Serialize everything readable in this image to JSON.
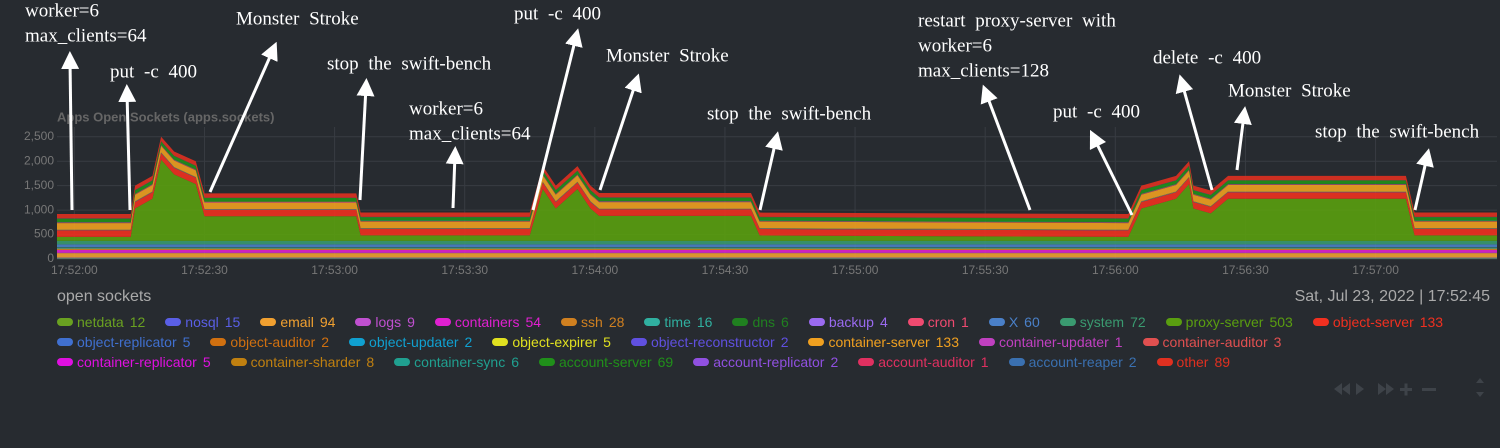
{
  "chart_data": {
    "type": "stacked-area",
    "title": "Apps Open Sockets (apps.sockets)",
    "subtitle": "open sockets",
    "timestamp": "Sat, Jul 23, 2022 | 17:52:45",
    "x": [
      "17:51:56",
      "17:52:13",
      "17:52:14",
      "17:52:18",
      "17:52:20",
      "17:52:23",
      "17:52:28",
      "17:52:30",
      "17:53:05",
      "17:53:06",
      "17:53:45",
      "17:53:48",
      "17:53:51",
      "17:53:56",
      "17:53:59",
      "17:54:01",
      "17:54:36",
      "17:54:38",
      "17:56:03",
      "17:56:06",
      "17:56:14",
      "17:56:17",
      "17:56:18",
      "17:56:22",
      "17:56:26",
      "17:57:07",
      "17:57:09",
      "17:57:28"
    ],
    "xlim": [
      "17:51:56",
      "17:57:28"
    ],
    "xticks": [
      "17:52:00",
      "17:52:30",
      "17:53:00",
      "17:53:30",
      "17:54:00",
      "17:54:30",
      "17:55:00",
      "17:55:30",
      "17:56:00",
      "17:56:30",
      "17:57:00"
    ],
    "ylim": [
      0,
      2700
    ],
    "yticks": [
      0,
      500,
      {
        "value": 1000,
        "label": "1,000"
      },
      {
        "value": 1500,
        "label": "1,500"
      },
      {
        "value": 2000,
        "label": "2,000"
      },
      {
        "value": 2500,
        "label": "2,500"
      }
    ],
    "grid": true,
    "series": [
      {
        "name": "netdata",
        "color": "#6aa121",
        "current": 12,
        "values": [
          12,
          12,
          12,
          12,
          12,
          12,
          12,
          12,
          12,
          12,
          12,
          12,
          12,
          12,
          12,
          12,
          12,
          12,
          12,
          12,
          12,
          12,
          12,
          12,
          12,
          12,
          12,
          12
        ]
      },
      {
        "name": "nosql",
        "color": "#5a5fe6",
        "current": 15,
        "values": [
          15,
          15,
          15,
          15,
          15,
          15,
          15,
          15,
          15,
          15,
          15,
          15,
          15,
          15,
          15,
          15,
          15,
          15,
          15,
          15,
          15,
          15,
          15,
          15,
          15,
          15,
          15,
          15
        ]
      },
      {
        "name": "email",
        "color": "#f0a030",
        "current": 94,
        "values": [
          94,
          94,
          94,
          94,
          94,
          94,
          94,
          94,
          94,
          94,
          94,
          94,
          94,
          94,
          94,
          94,
          94,
          94,
          94,
          94,
          94,
          94,
          94,
          94,
          94,
          94,
          94,
          94
        ]
      },
      {
        "name": "logs",
        "color": "#c050d0",
        "current": 9,
        "values": [
          9,
          9,
          9,
          9,
          9,
          9,
          9,
          9,
          9,
          9,
          9,
          9,
          9,
          9,
          9,
          9,
          9,
          9,
          9,
          9,
          9,
          9,
          9,
          9,
          9,
          9,
          9,
          9
        ]
      },
      {
        "name": "containers",
        "color": "#e020d0",
        "current": 54,
        "values": [
          54,
          54,
          54,
          54,
          54,
          54,
          54,
          54,
          54,
          54,
          54,
          54,
          54,
          54,
          54,
          54,
          54,
          54,
          54,
          54,
          54,
          54,
          54,
          54,
          54,
          54,
          54,
          54
        ]
      },
      {
        "name": "ssh",
        "color": "#d08020",
        "current": 28,
        "values": [
          28,
          28,
          28,
          28,
          28,
          28,
          28,
          28,
          28,
          28,
          28,
          28,
          28,
          28,
          28,
          28,
          28,
          28,
          28,
          28,
          28,
          28,
          28,
          28,
          28,
          28,
          28,
          28
        ]
      },
      {
        "name": "time",
        "color": "#30b0a0",
        "current": 16,
        "values": [
          16,
          16,
          16,
          16,
          16,
          16,
          16,
          16,
          16,
          16,
          16,
          16,
          16,
          16,
          16,
          16,
          16,
          16,
          16,
          16,
          16,
          16,
          16,
          16,
          16,
          16,
          16,
          16
        ]
      },
      {
        "name": "dns",
        "color": "#208020",
        "current": 6,
        "values": [
          6,
          6,
          6,
          6,
          6,
          6,
          6,
          6,
          6,
          6,
          6,
          6,
          6,
          6,
          6,
          6,
          6,
          6,
          6,
          6,
          6,
          6,
          6,
          6,
          6,
          6,
          6,
          6
        ]
      },
      {
        "name": "backup",
        "color": "#9a6af0",
        "current": 4,
        "values": [
          4,
          4,
          4,
          4,
          4,
          4,
          4,
          4,
          4,
          4,
          4,
          4,
          4,
          4,
          4,
          4,
          4,
          4,
          4,
          4,
          4,
          4,
          4,
          4,
          4,
          4,
          4,
          4
        ]
      },
      {
        "name": "cron",
        "color": "#f04a70",
        "current": 1,
        "values": [
          1,
          1,
          1,
          1,
          1,
          1,
          1,
          1,
          1,
          1,
          1,
          1,
          1,
          1,
          1,
          1,
          1,
          1,
          1,
          1,
          1,
          1,
          1,
          1,
          1,
          1,
          1,
          1
        ]
      },
      {
        "name": "X",
        "color": "#4a80c8",
        "current": 60,
        "values": [
          60,
          60,
          60,
          60,
          60,
          60,
          60,
          60,
          60,
          60,
          60,
          60,
          60,
          60,
          60,
          60,
          60,
          60,
          60,
          60,
          60,
          60,
          60,
          60,
          60,
          60,
          60,
          60
        ]
      },
      {
        "name": "system",
        "color": "#3a9a70",
        "current": 72,
        "values": [
          72,
          72,
          72,
          72,
          72,
          72,
          72,
          72,
          72,
          72,
          72,
          72,
          72,
          72,
          72,
          72,
          72,
          72,
          72,
          72,
          72,
          72,
          72,
          72,
          72,
          72,
          72,
          72
        ]
      },
      {
        "name": "proxy-server",
        "color": "#5a9e10",
        "current": 503,
        "values": [
          81,
          81,
          661,
          861,
          1661,
          1361,
          1161,
          503,
          503,
          111,
          111,
          1061,
          661,
          1061,
          661,
          511,
          511,
          111,
          81,
          661,
          861,
          1161,
          661,
          561,
          861,
          861,
          111,
          111
        ]
      },
      {
        "name": "object-server",
        "color": "#f03020",
        "current": 133,
        "values": [
          133,
          133,
          133,
          133,
          133,
          133,
          133,
          133,
          133,
          133,
          133,
          133,
          133,
          133,
          133,
          133,
          133,
          133,
          133,
          133,
          133,
          133,
          133,
          133,
          133,
          133,
          133,
          133
        ]
      },
      {
        "name": "object-replicator",
        "color": "#4070d0",
        "current": 5,
        "values": [
          5,
          5,
          5,
          5,
          5,
          5,
          5,
          5,
          5,
          5,
          5,
          5,
          5,
          5,
          5,
          5,
          5,
          5,
          5,
          5,
          5,
          5,
          5,
          5,
          5,
          5,
          5,
          5
        ]
      },
      {
        "name": "object-auditor",
        "color": "#d07010",
        "current": 2,
        "values": [
          2,
          2,
          2,
          2,
          2,
          2,
          2,
          2,
          2,
          2,
          2,
          2,
          2,
          2,
          2,
          2,
          2,
          2,
          2,
          2,
          2,
          2,
          2,
          2,
          2,
          2,
          2,
          2
        ]
      },
      {
        "name": "object-updater",
        "color": "#10a0d0",
        "current": 2,
        "values": [
          2,
          2,
          2,
          2,
          2,
          2,
          2,
          2,
          2,
          2,
          2,
          2,
          2,
          2,
          2,
          2,
          2,
          2,
          2,
          2,
          2,
          2,
          2,
          2,
          2,
          2,
          2,
          2
        ]
      },
      {
        "name": "object-expirer",
        "color": "#e0e020",
        "current": 5,
        "values": [
          5,
          5,
          5,
          5,
          5,
          5,
          5,
          5,
          5,
          5,
          5,
          5,
          5,
          5,
          5,
          5,
          5,
          5,
          5,
          5,
          5,
          5,
          5,
          5,
          5,
          5,
          5,
          5
        ]
      },
      {
        "name": "object-reconstructor",
        "color": "#6050e0",
        "current": 2,
        "values": [
          2,
          2,
          2,
          2,
          2,
          2,
          2,
          2,
          2,
          2,
          2,
          2,
          2,
          2,
          2,
          2,
          2,
          2,
          2,
          2,
          2,
          2,
          2,
          2,
          2,
          2,
          2,
          2
        ]
      },
      {
        "name": "container-server",
        "color": "#f0a020",
        "current": 133,
        "values": [
          133,
          133,
          133,
          133,
          133,
          133,
          133,
          133,
          133,
          133,
          133,
          133,
          133,
          133,
          133,
          133,
          133,
          133,
          133,
          133,
          133,
          133,
          133,
          133,
          133,
          133,
          133,
          133
        ]
      },
      {
        "name": "container-updater",
        "color": "#c040c0",
        "current": 1,
        "values": [
          1,
          1,
          1,
          1,
          1,
          1,
          1,
          1,
          1,
          1,
          1,
          1,
          1,
          1,
          1,
          1,
          1,
          1,
          1,
          1,
          1,
          1,
          1,
          1,
          1,
          1,
          1,
          1
        ]
      },
      {
        "name": "container-auditor",
        "color": "#e05050",
        "current": 3,
        "values": [
          3,
          3,
          3,
          3,
          3,
          3,
          3,
          3,
          3,
          3,
          3,
          3,
          3,
          3,
          3,
          3,
          3,
          3,
          3,
          3,
          3,
          3,
          3,
          3,
          3,
          3,
          3,
          3
        ]
      },
      {
        "name": "container-replicator",
        "color": "#e010e0",
        "current": 5,
        "values": [
          5,
          5,
          5,
          5,
          5,
          5,
          5,
          5,
          5,
          5,
          5,
          5,
          5,
          5,
          5,
          5,
          5,
          5,
          5,
          5,
          5,
          5,
          5,
          5,
          5,
          5,
          5,
          5
        ]
      },
      {
        "name": "container-sharder",
        "color": "#c08010",
        "current": 8,
        "values": [
          8,
          8,
          8,
          8,
          8,
          8,
          8,
          8,
          8,
          8,
          8,
          8,
          8,
          8,
          8,
          8,
          8,
          8,
          8,
          8,
          8,
          8,
          8,
          8,
          8,
          8,
          8,
          8
        ]
      },
      {
        "name": "container-sync",
        "color": "#20a090",
        "current": 6,
        "values": [
          6,
          6,
          6,
          6,
          6,
          6,
          6,
          6,
          6,
          6,
          6,
          6,
          6,
          6,
          6,
          6,
          6,
          6,
          6,
          6,
          6,
          6,
          6,
          6,
          6,
          6,
          6,
          6
        ]
      },
      {
        "name": "account-server",
        "color": "#20901a",
        "current": 69,
        "values": [
          69,
          69,
          69,
          69,
          69,
          69,
          69,
          69,
          69,
          69,
          69,
          69,
          69,
          69,
          69,
          69,
          69,
          69,
          69,
          69,
          69,
          69,
          69,
          69,
          69,
          69,
          69,
          69
        ]
      },
      {
        "name": "account-replicator",
        "color": "#9050e0",
        "current": 2,
        "values": [
          2,
          2,
          2,
          2,
          2,
          2,
          2,
          2,
          2,
          2,
          2,
          2,
          2,
          2,
          2,
          2,
          2,
          2,
          2,
          2,
          2,
          2,
          2,
          2,
          2,
          2,
          2,
          2
        ]
      },
      {
        "name": "account-auditor",
        "color": "#e03060",
        "current": 1,
        "values": [
          1,
          1,
          1,
          1,
          1,
          1,
          1,
          1,
          1,
          1,
          1,
          1,
          1,
          1,
          1,
          1,
          1,
          1,
          1,
          1,
          1,
          1,
          1,
          1,
          1,
          1,
          1,
          1
        ]
      },
      {
        "name": "account-reaper",
        "color": "#3a70b0",
        "current": 2,
        "values": [
          2,
          2,
          2,
          2,
          2,
          2,
          2,
          2,
          2,
          2,
          2,
          2,
          2,
          2,
          2,
          2,
          2,
          2,
          2,
          2,
          2,
          2,
          2,
          2,
          2,
          2,
          2,
          2
        ]
      },
      {
        "name": "other",
        "color": "#e03020",
        "current": 89,
        "values": [
          89,
          89,
          89,
          89,
          89,
          89,
          89,
          89,
          89,
          89,
          89,
          89,
          89,
          89,
          89,
          89,
          89,
          89,
          89,
          89,
          89,
          89,
          89,
          89,
          89,
          89,
          89,
          89
        ]
      }
    ],
    "annotations": [
      [
        "worker=6",
        "max_clients=64"
      ],
      [
        "put -c 400"
      ],
      [
        "Monster Stroke"
      ],
      [
        "stop the swift-bench"
      ],
      [
        "worker=6",
        "max_clients=64"
      ],
      [
        "put -c 400"
      ],
      [
        "Monster Stroke"
      ],
      [
        "stop the swift-bench"
      ],
      [
        "restart proxy-server with",
        "worker=6",
        "max_clients=128"
      ],
      [
        "put -c 400"
      ],
      [
        "delete -c 400"
      ],
      [
        "Monster Stroke"
      ],
      [
        "stop the swift-bench"
      ]
    ]
  }
}
